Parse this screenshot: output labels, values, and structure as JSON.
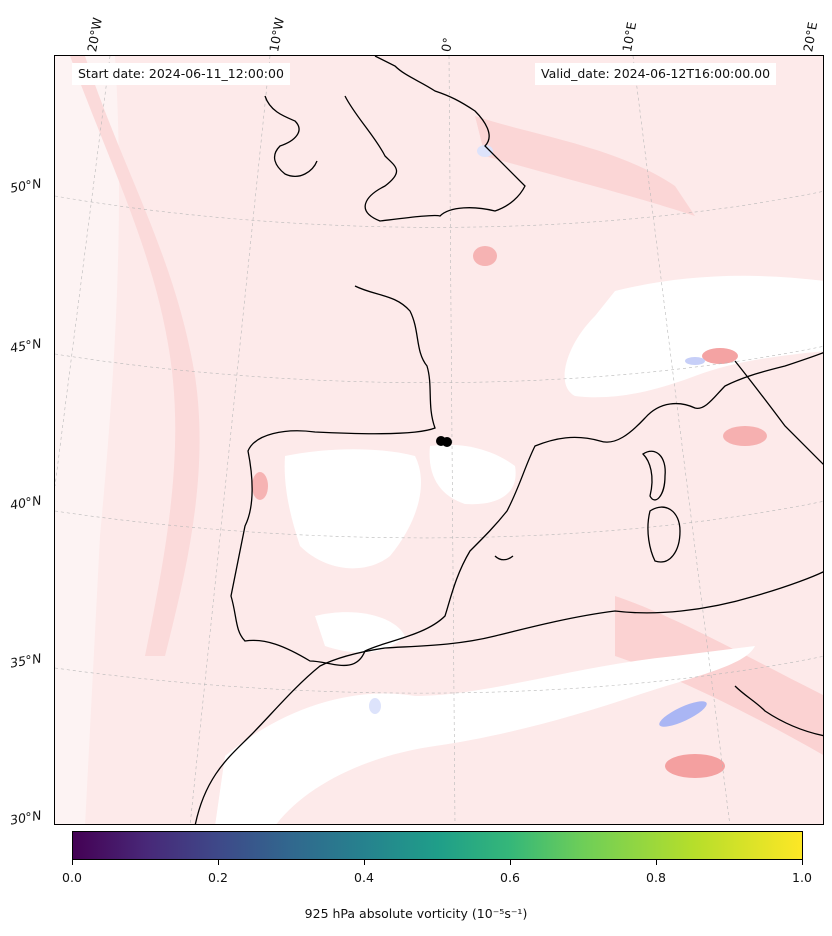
{
  "map": {
    "start_date": "Start date: 2024-06-11_12:00:00",
    "valid_date": "Valid_date: 2024-06-12T16:00:00.00",
    "lon_labels": [
      "20°W",
      "10°W",
      "0°",
      "10°E",
      "20°E"
    ],
    "lat_labels": [
      "50°N",
      "45°N",
      "40°N",
      "35°N",
      "30°N"
    ],
    "colors": {
      "land_line": "#000000",
      "field_light": "#fde8e8",
      "field_mid": "#fbd2d2",
      "field_strong": "#f6a9a9",
      "negative": "#d6dcfa"
    }
  },
  "colorbar": {
    "label": "925 hPa absolute vorticity (10⁻⁵s⁻¹)",
    "ticks": [
      "0.0",
      "0.2",
      "0.4",
      "0.6",
      "0.8",
      "1.0"
    ],
    "colormap": "viridis"
  }
}
